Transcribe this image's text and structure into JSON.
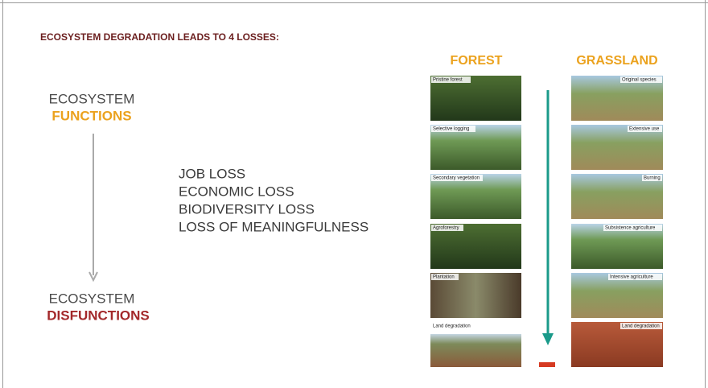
{
  "slide": {
    "title": "ECOSYSTEM DEGRADATION LEADS TO 4 LOSSES:",
    "left": {
      "top_line": "ECOSYSTEM",
      "top_highlight": "FUNCTIONS",
      "bottom_line": "ECOSYSTEM",
      "bottom_highlight": "DISFUNCTIONS"
    },
    "losses": [
      "JOB LOSS",
      "ECONOMIC LOSS",
      "BIODIVERSITY LOSS",
      "LOSS OF MEANINGFULNESS"
    ],
    "forest": {
      "title": "FOREST",
      "stages": [
        "Pristine forest",
        "Selective logging",
        "Secondary vegetation",
        "Agroforestry",
        "Plantation",
        "Land degradation"
      ]
    },
    "grassland": {
      "title": "GRASSLAND",
      "stages": [
        "Original species",
        "Extensive use",
        "Burning",
        "Subsistence agriculture",
        "Intensive agriculture",
        "Land degradation"
      ]
    }
  }
}
